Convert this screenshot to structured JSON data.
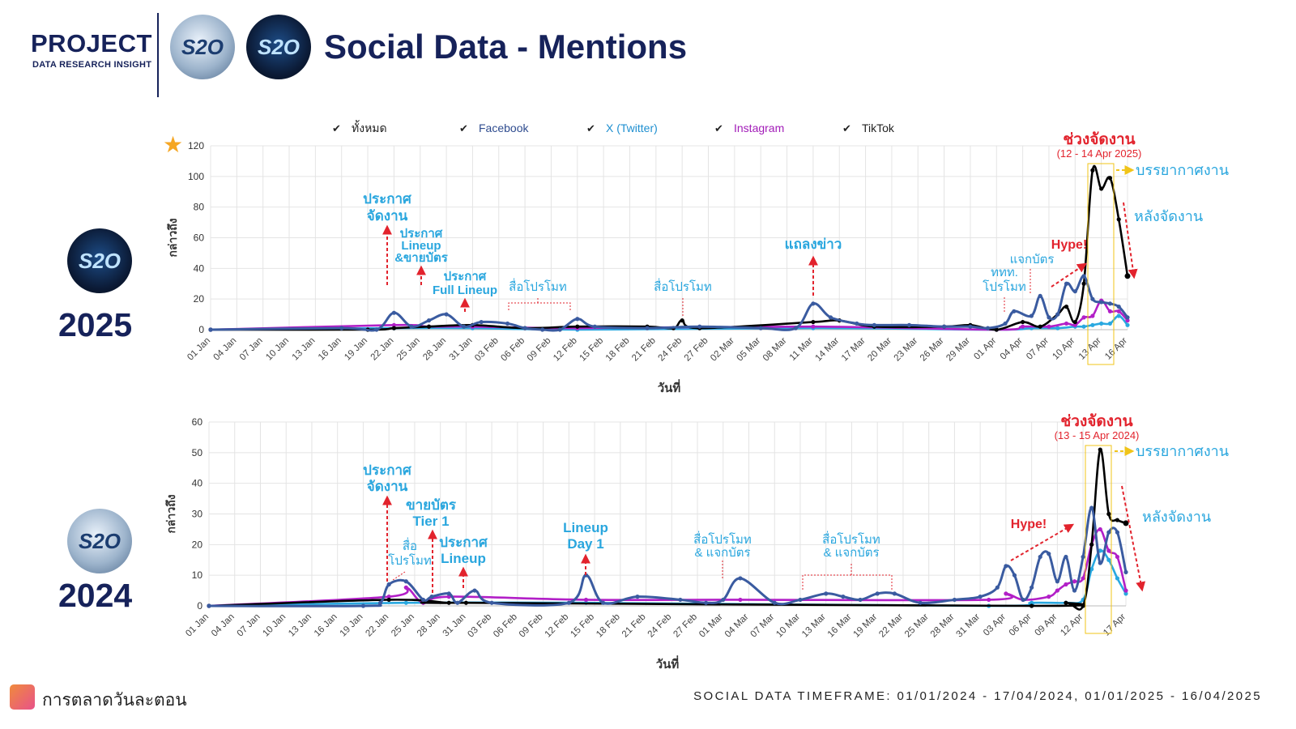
{
  "header": {
    "project": "PROJECT",
    "subtitle": "DATA RESEARCH INSIGHT",
    "title": "Social Data - Mentions",
    "logo_text": "S2O"
  },
  "legend": [
    {
      "name": "ทั้งหมด",
      "color": "#000000",
      "text_color": "#222222"
    },
    {
      "name": "Facebook",
      "color": "#3a5ba0",
      "text_color": "#2f4c8f"
    },
    {
      "name": "X (Twitter)",
      "color": "#29a8e0",
      "text_color": "#1e8fd0"
    },
    {
      "name": "Instagram",
      "color": "#b21fc7",
      "text_color": "#a21cb8"
    },
    {
      "name": "TikTok",
      "color": "#111111",
      "text_color": "#222222"
    }
  ],
  "footer": {
    "brand": "การตลาดวันละตอน",
    "timeframe": "SOCIAL DATA TIMEFRAME: 01/01/2024 - 17/04/2024, 01/01/2025 - 16/04/2025"
  },
  "chart_data": [
    {
      "type": "line",
      "year_label": "2025",
      "xlabel": "วันที่",
      "ylabel": "กล่าวถึง",
      "ylim": [
        0,
        120
      ],
      "yticks": [
        0,
        20,
        40,
        60,
        80,
        100,
        120
      ],
      "xticks": [
        "01 Jan",
        "04 Jan",
        "07 Jan",
        "10 Jan",
        "13 Jan",
        "16 Jan",
        "19 Jan",
        "22 Jan",
        "25 Jan",
        "28 Jan",
        "31 Jan",
        "03 Feb",
        "06 Feb",
        "09 Feb",
        "12 Feb",
        "15 Feb",
        "18 Feb",
        "21 Feb",
        "24 Feb",
        "27 Feb",
        "02 Mar",
        "05 Mar",
        "08 Mar",
        "11 Mar",
        "14 Mar",
        "17 Mar",
        "20 Mar",
        "23 Mar",
        "26 Mar",
        "29 Mar",
        "01 Apr",
        "04 Apr",
        "07 Apr",
        "10 Apr",
        "13 Apr",
        "16 Apr"
      ],
      "grid": true,
      "series": [
        {
          "name": "Facebook",
          "x": [
            "01 Jan",
            "16 Jan",
            "20 Jan",
            "22 Jan",
            "24 Jan",
            "26 Jan",
            "28 Jan",
            "30 Jan",
            "01 Feb",
            "04 Feb",
            "06 Feb",
            "08 Feb",
            "10 Feb",
            "12 Feb",
            "14 Feb",
            "20 Feb",
            "26 Feb",
            "05 Mar",
            "09 Mar",
            "11 Mar",
            "13 Mar",
            "16 Mar",
            "18 Mar",
            "22 Mar",
            "26 Mar",
            "29 Mar",
            "31 Mar",
            "02 Apr",
            "03 Apr",
            "05 Apr",
            "06 Apr",
            "07 Apr",
            "08 Apr",
            "09 Apr",
            "10 Apr",
            "11 Apr",
            "12 Apr",
            "13 Apr",
            "14 Apr",
            "15 Apr",
            "16 Apr"
          ],
          "y": [
            0,
            1,
            0,
            11,
            2,
            6,
            10,
            2,
            5,
            4,
            1,
            0,
            0,
            7,
            2,
            1,
            2,
            1,
            1,
            17,
            8,
            4,
            3,
            3,
            2,
            2,
            1,
            4,
            12,
            9,
            22,
            8,
            10,
            30,
            25,
            35,
            20,
            18,
            17,
            15,
            8
          ]
        },
        {
          "name": "ทั้งหมด",
          "x": [
            "01 Jan",
            "19 Jan",
            "22 Jan",
            "26 Jan",
            "31 Jan",
            "06 Feb",
            "12 Feb",
            "20 Feb",
            "23 Feb",
            "24 Feb",
            "26 Feb",
            "11 Mar",
            "14 Mar",
            "18 Mar",
            "26 Mar",
            "29 Mar",
            "01 Apr",
            "04 Apr",
            "06 Apr",
            "08 Apr",
            "09 Apr",
            "10 Apr",
            "11 Apr",
            "12 Apr",
            "13 Apr",
            "14 Apr",
            "15 Apr",
            "16 Apr"
          ],
          "y": [
            0,
            0,
            1,
            2,
            3,
            1,
            2,
            2,
            1,
            6,
            1,
            5,
            6,
            2,
            2,
            3,
            0,
            5,
            2,
            10,
            15,
            5,
            30,
            104,
            92,
            99,
            72,
            35
          ]
        },
        {
          "name": "Instagram",
          "x": [
            "01 Jan",
            "22 Jan",
            "26 Jan",
            "31 Jan",
            "12 Feb",
            "11 Mar",
            "01 Apr",
            "04 Apr",
            "07 Apr",
            "09 Apr",
            "10 Apr",
            "11 Apr",
            "12 Apr",
            "13 Apr",
            "14 Apr",
            "15 Apr",
            "16 Apr"
          ],
          "y": [
            0,
            3,
            2,
            2,
            1,
            2,
            0,
            2,
            2,
            4,
            3,
            8,
            9,
            19,
            12,
            12,
            6
          ]
        },
        {
          "name": "X (Twitter)",
          "x": [
            "01 Jan",
            "22 Jan",
            "31 Jan",
            "12 Feb",
            "11 Mar",
            "01 Apr",
            "05 Apr",
            "08 Apr",
            "10 Apr",
            "11 Apr",
            "12 Apr",
            "13 Apr",
            "14 Apr",
            "15 Apr",
            "16 Apr"
          ],
          "y": [
            0,
            1,
            1,
            0,
            1,
            0,
            1,
            1,
            2,
            2,
            3,
            4,
            4,
            9,
            3
          ]
        }
      ],
      "annotations": [
        {
          "text": "ประกาศ\nจัดงาน"
        },
        {
          "text": "ประกาศ\nLineup\n&ขายบัตร"
        },
        {
          "text": "ประกาศ\nFull Lineup"
        },
        {
          "text": "สื่อโปรโมท"
        },
        {
          "text": "สื่อโปรโมท"
        },
        {
          "text": "แถลงข่าว"
        },
        {
          "text": "ททท.\nโปรโมท"
        },
        {
          "text": "แจกบัตร"
        },
        {
          "text": "Hype!"
        },
        {
          "text": "ช่วงจัดงาน"
        },
        {
          "text": "(12 - 14 Apr 2025)"
        },
        {
          "text": "บรรยากาศงาน"
        },
        {
          "text": "หลังจัดงาน"
        }
      ]
    },
    {
      "type": "line",
      "year_label": "2024",
      "xlabel": "วันที่",
      "ylabel": "กล่าวถึง",
      "ylim": [
        0,
        60
      ],
      "yticks": [
        0,
        10,
        20,
        30,
        40,
        50,
        60
      ],
      "xticks": [
        "01 Jan",
        "04 Jan",
        "07 Jan",
        "10 Jan",
        "13 Jan",
        "16 Jan",
        "19 Jan",
        "22 Jan",
        "25 Jan",
        "28 Jan",
        "31 Jan",
        "03 Feb",
        "06 Feb",
        "09 Feb",
        "12 Feb",
        "15 Feb",
        "18 Feb",
        "21 Feb",
        "24 Feb",
        "27 Feb",
        "01 Mar",
        "04 Mar",
        "07 Mar",
        "10 Mar",
        "13 Mar",
        "16 Mar",
        "19 Mar",
        "22 Mar",
        "25 Mar",
        "28 Mar",
        "31 Mar",
        "03 Apr",
        "06 Apr",
        "09 Apr",
        "12 Apr",
        "17 Apr"
      ],
      "grid": true,
      "series": [
        {
          "name": "Facebook",
          "x": [
            "01 Jan",
            "19 Jan",
            "21 Jan",
            "22 Jan",
            "24 Jan",
            "26 Jan",
            "27 Jan",
            "29 Jan",
            "30 Jan",
            "01 Feb",
            "03 Feb",
            "12 Feb",
            "14 Feb",
            "16 Feb",
            "20 Feb",
            "25 Feb",
            "28 Feb",
            "01 Mar",
            "03 Mar",
            "07 Mar",
            "10 Mar",
            "13 Mar",
            "15 Mar",
            "17 Mar",
            "19 Mar",
            "21 Mar",
            "24 Mar",
            "28 Mar",
            "31 Mar",
            "02 Apr",
            "03 Apr",
            "04 Apr",
            "05 Apr",
            "06 Apr",
            "07 Apr",
            "08 Apr",
            "09 Apr",
            "10 Apr",
            "11 Apr",
            "12 Apr",
            "13 Apr",
            "14 Apr",
            "15 Apr",
            "16 Apr",
            "17 Apr"
          ],
          "y": [
            0,
            0,
            1,
            7,
            8,
            2,
            3,
            4,
            1,
            5,
            1,
            1,
            10,
            1,
            3,
            2,
            1,
            2,
            9,
            1,
            2,
            4,
            3,
            2,
            4,
            4,
            1,
            2,
            3,
            6,
            13,
            10,
            2,
            6,
            16,
            17,
            8,
            16,
            5,
            16,
            32,
            14,
            24,
            24,
            11
          ]
        },
        {
          "name": "ทั้งหมด",
          "x": [
            "01 Jan",
            "22 Jan",
            "29 Jan",
            "31 Jan",
            "06 Apr",
            "10 Apr",
            "12 Apr",
            "13 Apr",
            "14 Apr",
            "15 Apr",
            "16 Apr",
            "17 Apr"
          ],
          "y": [
            0,
            2,
            1,
            1,
            0,
            1,
            0,
            20,
            51,
            30,
            28,
            27
          ]
        },
        {
          "name": "Instagram",
          "x": [
            "01 Jan",
            "22 Jan",
            "24 Jan",
            "26 Jan",
            "29 Jan",
            "14 Feb",
            "03 Mar",
            "01 Apr",
            "03 Apr",
            "05 Apr",
            "08 Apr",
            "09 Apr",
            "10 Apr",
            "11 Apr",
            "12 Apr",
            "13 Apr",
            "14 Apr",
            "15 Apr",
            "16 Apr",
            "17 Apr"
          ],
          "y": [
            0,
            3,
            6,
            1,
            3,
            2,
            2,
            2,
            4,
            2,
            3,
            5,
            7,
            8,
            9,
            20,
            25,
            18,
            16,
            5
          ]
        },
        {
          "name": "X (Twitter)",
          "x": [
            "01 Jan",
            "24 Jan",
            "14 Feb",
            "01 Apr",
            "06 Apr",
            "10 Apr",
            "12 Apr",
            "13 Apr",
            "14 Apr",
            "15 Apr",
            "16 Apr",
            "17 Apr"
          ],
          "y": [
            0,
            1,
            1,
            0,
            1,
            1,
            2,
            12,
            18,
            15,
            9,
            4
          ]
        }
      ],
      "annotations": [
        {
          "text": "ประกาศ\nจัดงาน"
        },
        {
          "text": "สื่อ\nโปรโมท"
        },
        {
          "text": "ขายบัตร\nTier 1"
        },
        {
          "text": "ประกาศ\nLineup"
        },
        {
          "text": "Lineup\nDay 1"
        },
        {
          "text": "สื่อโปรโมท\n& แจกบัตร"
        },
        {
          "text": "สื่อโปรโมท\n& แจกบัตร"
        },
        {
          "text": "Hype!"
        },
        {
          "text": "ช่วงจัดงาน"
        },
        {
          "text": "(13 - 15 Apr 2024)"
        },
        {
          "text": "บรรยากาศงาน"
        },
        {
          "text": "หลังจัดงาน"
        }
      ]
    }
  ]
}
